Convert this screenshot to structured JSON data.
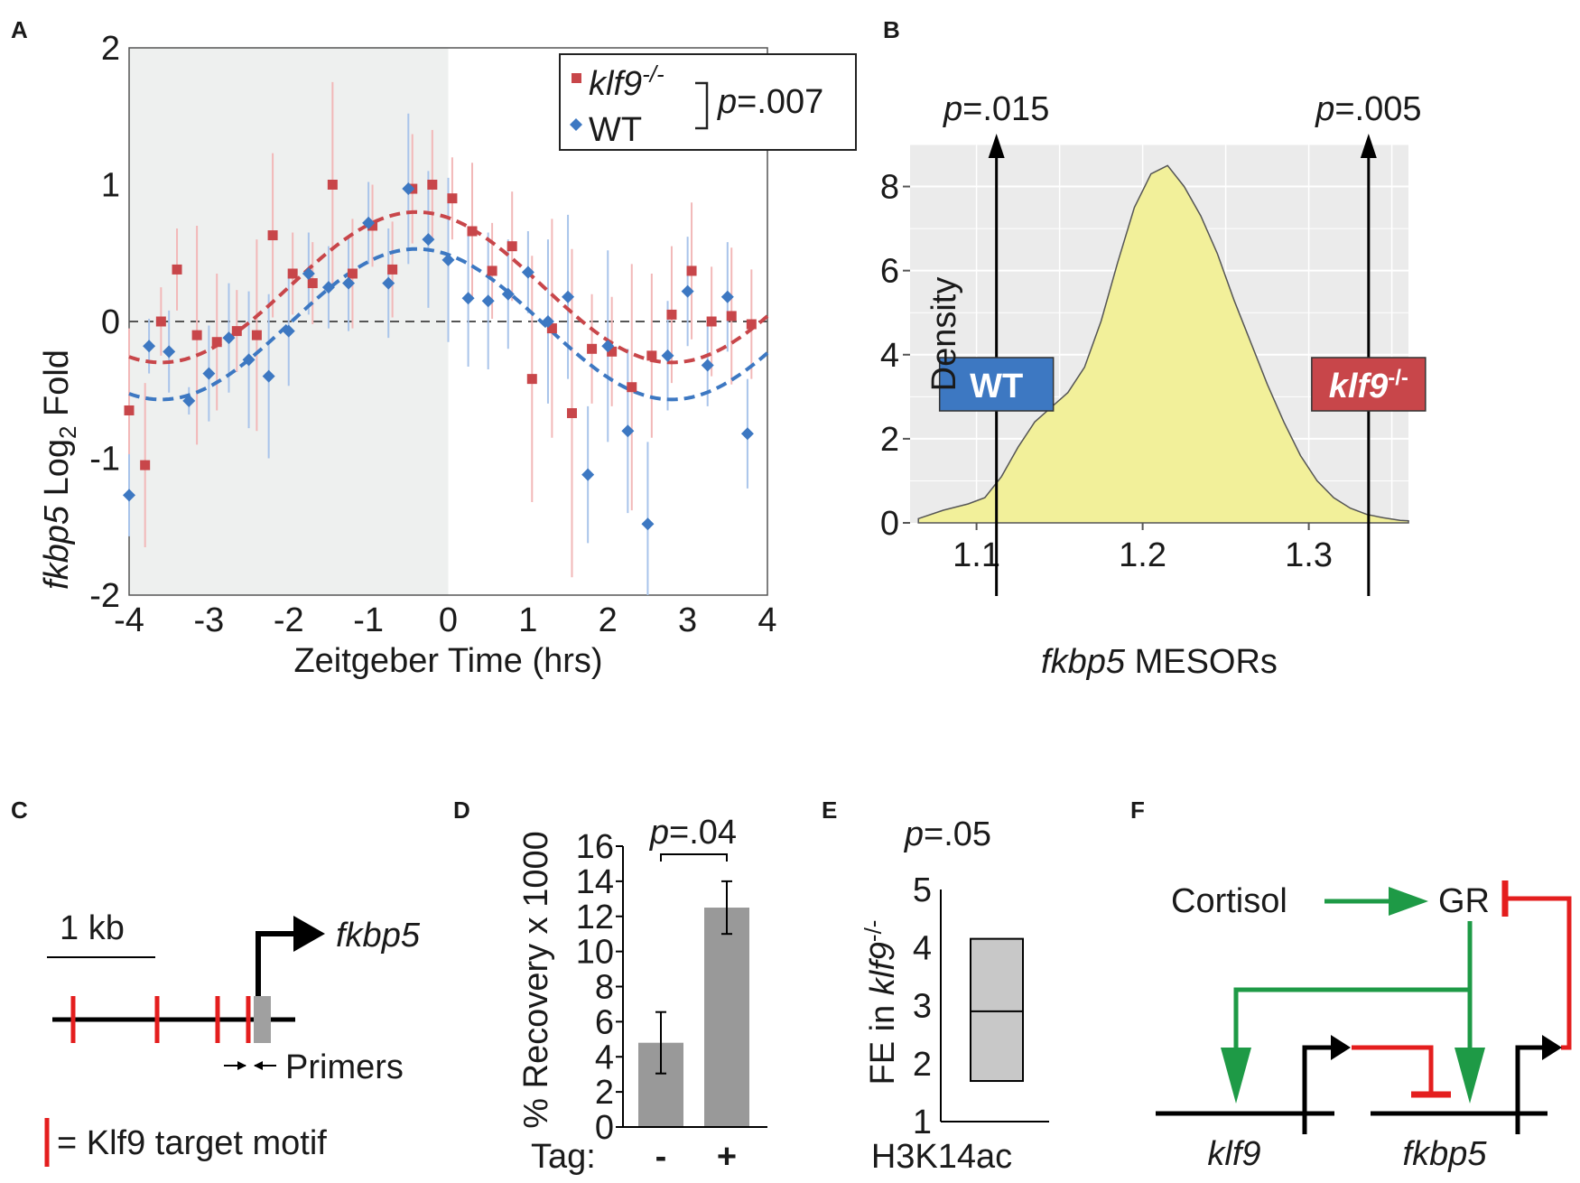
{
  "panels": {
    "a": "A",
    "b": "B",
    "c": "C",
    "d": "D",
    "e": "E",
    "f": "F"
  },
  "chart_data": [
    {
      "panel": "A",
      "type": "scatter",
      "ylabel_gene": "fkbp5",
      "ylabel_text": "Log",
      "ylabel_sub": "2",
      "ylabel_tail": "Fold",
      "xlabel": "Zeitgeber Time (hrs)",
      "xlim": [
        -4,
        4
      ],
      "ylim": [
        -2,
        2
      ],
      "xticks": [
        "-4",
        "-3",
        "-2",
        "-1",
        "0",
        "1",
        "2",
        "3",
        "4"
      ],
      "yticks": [
        "2",
        "1",
        "0",
        "-1",
        "-2"
      ],
      "xtick_values": [
        -4,
        -3,
        -2,
        -1,
        0,
        1,
        2,
        3,
        4
      ],
      "ytick_values": [
        2,
        1,
        0,
        -1,
        -2
      ],
      "shaded_range": [
        -4,
        0
      ],
      "baseline": 0,
      "legend": {
        "klf9": "klf9",
        "klf9_sup": "-/-",
        "wt": "WT",
        "pvalue_p": "p",
        "pvalue": "=.007"
      },
      "colors": {
        "klf9": "#c8464a",
        "wt": "#3d78c2",
        "klf9_err": "#f2b8b8",
        "wt_err": "#a9c4ea",
        "shade": "#eef0ef"
      },
      "series": [
        {
          "name": "klf9-/-",
          "marker": "square",
          "x": [
            -4.0,
            -3.8,
            -3.6,
            -3.4,
            -3.15,
            -2.9,
            -2.65,
            -2.4,
            -2.2,
            -1.95,
            -1.7,
            -1.45,
            -1.2,
            -0.95,
            -0.7,
            -0.45,
            -0.2,
            0.05,
            0.3,
            0.55,
            0.8,
            1.05,
            1.3,
            1.55,
            1.8,
            2.05,
            2.3,
            2.55,
            2.8,
            3.05,
            3.3,
            3.55,
            3.8
          ],
          "y": [
            -0.65,
            -1.05,
            0.0,
            0.38,
            -0.1,
            -0.15,
            -0.07,
            -0.1,
            0.63,
            0.35,
            0.28,
            1.0,
            0.35,
            0.7,
            0.38,
            0.97,
            1.0,
            0.9,
            0.66,
            0.37,
            0.55,
            -0.42,
            -0.05,
            -0.67,
            -0.2,
            -0.22,
            -0.48,
            -0.25,
            0.05,
            0.37,
            0.0,
            0.04,
            -0.02
          ],
          "err": [
            0.6,
            0.6,
            0.25,
            0.3,
            0.8,
            0.5,
            0.3,
            0.7,
            0.6,
            0.3,
            0.3,
            0.75,
            0.4,
            0.3,
            0.35,
            0.4,
            0.4,
            0.3,
            0.5,
            0.35,
            0.4,
            0.9,
            0.8,
            1.2,
            0.4,
            0.4,
            0.9,
            0.6,
            0.5,
            0.5,
            0.4,
            0.5,
            0.4
          ]
        },
        {
          "name": "WT",
          "marker": "diamond",
          "x": [
            -4.0,
            -3.75,
            -3.5,
            -3.25,
            -3.0,
            -2.75,
            -2.5,
            -2.25,
            -2.0,
            -1.75,
            -1.5,
            -1.25,
            -1.0,
            -0.75,
            -0.5,
            -0.25,
            0.0,
            0.25,
            0.5,
            0.75,
            1.0,
            1.25,
            1.5,
            1.75,
            2.0,
            2.25,
            2.5,
            2.75,
            3.0,
            3.25,
            3.5,
            3.75
          ],
          "y": [
            -1.27,
            -0.18,
            -0.22,
            -0.58,
            -0.38,
            -0.12,
            -0.28,
            -0.4,
            -0.07,
            0.35,
            0.25,
            0.28,
            0.72,
            0.28,
            0.97,
            0.6,
            0.45,
            0.17,
            0.15,
            0.2,
            0.36,
            0.0,
            0.18,
            -1.12,
            -0.18,
            -0.8,
            -1.48,
            -0.25,
            0.22,
            -0.32,
            0.18,
            -0.82
          ],
          "err": [
            0.3,
            0.2,
            0.3,
            0.1,
            0.35,
            0.4,
            0.5,
            0.6,
            0.4,
            0.3,
            0.3,
            0.35,
            0.3,
            0.4,
            0.55,
            0.5,
            0.6,
            0.5,
            0.5,
            0.4,
            0.3,
            0.6,
            0.6,
            0.5,
            0.7,
            0.6,
            0.6,
            0.4,
            0.4,
            0.3,
            0.4,
            0.4
          ]
        }
      ],
      "fits": [
        {
          "name": "klf9-/- fit",
          "mesor": 0.25,
          "amplitude": 0.55,
          "peak": -0.4,
          "period": 6.4
        },
        {
          "name": "WT fit",
          "mesor": -0.02,
          "amplitude": 0.55,
          "peak": -0.4,
          "period": 6.4
        }
      ]
    },
    {
      "panel": "B",
      "type": "area",
      "ylabel": "Density",
      "xlabel_gene": "fkbp5",
      "xlabel_tail": "MESORs",
      "xlim": [
        1.06,
        1.36
      ],
      "ylim": [
        0,
        9
      ],
      "xticks": [
        "1.1",
        "1.2",
        "1.3"
      ],
      "xtick_values": [
        1.1,
        1.2,
        1.3
      ],
      "yticks": [
        "8",
        "6",
        "4",
        "2",
        "0"
      ],
      "ytick_values": [
        8,
        6,
        4,
        2,
        0
      ],
      "x": [
        1.065,
        1.08,
        1.095,
        1.105,
        1.115,
        1.125,
        1.135,
        1.145,
        1.155,
        1.165,
        1.175,
        1.185,
        1.195,
        1.205,
        1.215,
        1.225,
        1.235,
        1.245,
        1.255,
        1.265,
        1.275,
        1.285,
        1.295,
        1.305,
        1.315,
        1.325,
        1.335,
        1.345,
        1.355,
        1.36
      ],
      "y": [
        0.1,
        0.3,
        0.45,
        0.6,
        1.1,
        1.8,
        2.4,
        2.75,
        3.1,
        3.7,
        4.8,
        6.2,
        7.5,
        8.3,
        8.5,
        8.0,
        7.3,
        6.4,
        5.3,
        4.3,
        3.3,
        2.4,
        1.6,
        1.0,
        0.6,
        0.35,
        0.2,
        0.12,
        0.06,
        0.05
      ],
      "fill": "#f2f09a",
      "markers": [
        {
          "label": "WT",
          "x": 1.112,
          "pvalue_p": "p",
          "pvalue": "=.015",
          "color": "#3d78c2"
        },
        {
          "label": "klf9",
          "sup": "-/-",
          "x": 1.336,
          "pvalue_p": "p",
          "pvalue": "=.005",
          "color": "#c8464a"
        }
      ]
    },
    {
      "panel": "D",
      "type": "bar",
      "ylabel": "% Recovery x 1000",
      "categories_label": "Tag:",
      "categories": [
        "-",
        "+"
      ],
      "values": [
        4.8,
        12.5
      ],
      "err": [
        1.75,
        1.5
      ],
      "ylim": [
        0,
        16
      ],
      "yticks": [
        "16",
        "14",
        "12",
        "10",
        "8",
        "6",
        "4",
        "2",
        "0"
      ],
      "ytick_values": [
        16,
        14,
        12,
        10,
        8,
        6,
        4,
        2,
        0
      ],
      "pvalue_p": "p",
      "pvalue": "=.04",
      "color": "#999999"
    },
    {
      "panel": "E",
      "type": "box",
      "ylabel_prefix": "FE in",
      "ylabel_gene": "klf9",
      "ylabel_sup": "-/-",
      "category": "H3K14ac",
      "ylim": [
        1,
        5
      ],
      "yticks": [
        "5",
        "4",
        "3",
        "2",
        "1"
      ],
      "ytick_values": [
        5,
        4,
        3,
        2,
        1
      ],
      "box": {
        "low": 1.7,
        "median": 2.9,
        "high": 4.15
      },
      "pvalue_p": "p",
      "pvalue": "=.05",
      "color": "#c8c8c8"
    }
  ],
  "panel_c": {
    "scale": "1 kb",
    "gene": "fkbp5",
    "primers": "Primers",
    "legend": "= Klf9 target motif"
  },
  "panel_f": {
    "cortisol": "Cortisol",
    "gr": "GR",
    "klf9": "klf9",
    "fkbp5": "fkbp5"
  }
}
